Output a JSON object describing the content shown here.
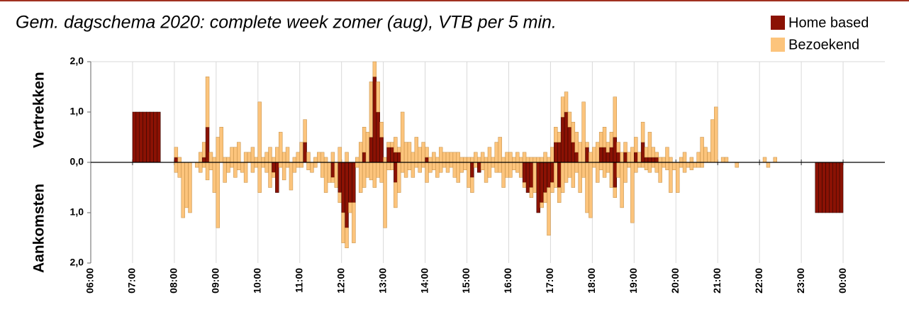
{
  "chart_data": {
    "type": "diverging-stacked-bar",
    "title": "Gem. dagschema 2020: complete week zomer (aug), VTB per 5 min.",
    "y_labels": [
      "Vertrekken",
      "Aankomsten"
    ],
    "xlim": [
      360,
      1500
    ],
    "xticks": [
      {
        "value": 360,
        "label": "06:00"
      },
      {
        "value": 420,
        "label": "07:00"
      },
      {
        "value": 480,
        "label": "08:00"
      },
      {
        "value": 540,
        "label": "09:00"
      },
      {
        "value": 600,
        "label": "10:00"
      },
      {
        "value": 660,
        "label": "11:00"
      },
      {
        "value": 720,
        "label": "12:00"
      },
      {
        "value": 780,
        "label": "13:00"
      },
      {
        "value": 840,
        "label": "14:00"
      },
      {
        "value": 900,
        "label": "15:00"
      },
      {
        "value": 960,
        "label": "16:00"
      },
      {
        "value": 1020,
        "label": "17:00"
      },
      {
        "value": 1080,
        "label": "18:00"
      },
      {
        "value": 1140,
        "label": "19:00"
      },
      {
        "value": 1200,
        "label": "20:00"
      },
      {
        "value": 1260,
        "label": "21:00"
      },
      {
        "value": 1320,
        "label": "22:00"
      },
      {
        "value": 1380,
        "label": "23:00"
      },
      {
        "value": 1440,
        "label": "00:00"
      }
    ],
    "ylim": [
      -2,
      2
    ],
    "yticks": [
      {
        "value": 2,
        "label": "2,0"
      },
      {
        "value": 1,
        "label": "1,0"
      },
      {
        "value": 0,
        "label": "0,0"
      },
      {
        "value": -1,
        "label": "1,0"
      },
      {
        "value": -2,
        "label": "2,0"
      }
    ],
    "grid": true,
    "bin_width": 5,
    "legend": "top-right",
    "x": [
      420,
      425,
      430,
      435,
      440,
      445,
      450,
      455,
      460,
      465,
      470,
      475,
      480,
      485,
      490,
      495,
      500,
      505,
      510,
      515,
      520,
      525,
      530,
      535,
      540,
      545,
      550,
      555,
      560,
      565,
      570,
      575,
      580,
      585,
      590,
      595,
      600,
      605,
      610,
      615,
      620,
      625,
      630,
      635,
      640,
      645,
      650,
      655,
      660,
      665,
      670,
      675,
      680,
      685,
      690,
      695,
      700,
      705,
      710,
      715,
      720,
      725,
      730,
      735,
      740,
      745,
      750,
      755,
      760,
      765,
      770,
      775,
      780,
      785,
      790,
      795,
      800,
      805,
      810,
      815,
      820,
      825,
      830,
      835,
      840,
      845,
      850,
      855,
      860,
      865,
      870,
      875,
      880,
      885,
      890,
      895,
      900,
      905,
      910,
      915,
      920,
      925,
      930,
      935,
      940,
      945,
      950,
      955,
      960,
      965,
      970,
      975,
      980,
      985,
      990,
      995,
      1000,
      1005,
      1010,
      1015,
      1020,
      1025,
      1030,
      1035,
      1040,
      1045,
      1050,
      1055,
      1060,
      1065,
      1070,
      1075,
      1080,
      1085,
      1090,
      1095,
      1100,
      1105,
      1110,
      1115,
      1120,
      1125,
      1130,
      1135,
      1140,
      1145,
      1150,
      1155,
      1160,
      1165,
      1170,
      1175,
      1180,
      1185,
      1190,
      1195,
      1200,
      1205,
      1210,
      1215,
      1220,
      1225,
      1230,
      1235,
      1240,
      1245,
      1250,
      1255,
      1260,
      1265,
      1270,
      1275,
      1280,
      1285,
      1290,
      1295,
      1300,
      1305,
      1310,
      1315,
      1320,
      1325,
      1330,
      1335,
      1340,
      1345,
      1350,
      1355,
      1360,
      1365,
      1370,
      1375,
      1380,
      1385,
      1390,
      1395,
      1400,
      1405,
      1410,
      1415,
      1420,
      1425,
      1430,
      1435
    ],
    "series": [
      {
        "name": "Home based",
        "color": "#8b1204",
        "values": [
          1,
          1,
          1,
          1,
          1,
          1,
          1,
          1,
          0,
          0,
          0,
          0,
          0.1,
          0,
          0,
          0,
          0,
          0,
          0,
          0,
          0.1,
          0.7,
          0,
          0,
          0,
          0,
          0,
          0,
          0,
          0,
          0,
          0,
          0,
          0,
          0,
          0,
          0,
          0,
          0,
          0,
          0,
          0,
          0,
          0,
          0,
          0,
          0,
          0,
          0,
          0.4,
          0,
          0,
          0,
          0,
          0,
          0,
          0,
          0,
          0,
          0,
          0,
          0,
          0,
          0,
          0,
          0,
          0.2,
          0,
          0.5,
          1.7,
          1.0,
          0.5,
          0,
          0.3,
          0.3,
          0.2,
          0.2,
          0,
          0,
          0,
          0,
          0,
          0,
          0,
          0.1,
          0,
          0,
          0,
          0,
          0,
          0,
          0,
          0,
          0,
          0,
          0,
          0,
          0,
          0,
          0,
          0,
          0,
          0,
          0,
          0,
          0,
          0,
          0,
          0,
          0,
          0,
          0,
          0,
          0,
          0,
          0,
          0,
          0,
          0,
          0,
          0,
          0.4,
          0.4,
          0.9,
          1.0,
          0.7,
          0.4,
          0.2,
          0,
          0,
          0.3,
          0,
          0,
          0,
          0.3,
          0.3,
          0.2,
          0.3,
          0.5,
          0.2,
          0,
          0.2,
          0,
          0,
          0.2,
          0,
          0.4,
          0.1,
          0.1,
          0.1,
          0.1,
          0,
          0,
          0,
          0,
          0,
          0,
          0,
          0,
          0,
          0,
          0,
          0,
          0,
          0,
          0,
          0,
          0,
          0,
          0,
          0,
          0,
          0,
          0,
          0,
          0,
          0,
          0,
          0,
          0,
          0,
          0,
          0,
          0,
          0,
          0,
          0,
          0,
          0,
          0,
          0,
          0,
          0,
          0,
          0,
          0,
          0,
          0,
          0,
          0,
          0,
          0,
          0,
          0
        ],
        "arrivals": [
          0,
          0,
          0,
          0,
          0,
          0,
          0,
          0,
          0,
          0,
          0,
          0,
          0,
          0,
          0,
          0,
          0,
          0,
          0,
          0,
          0,
          0,
          0,
          0,
          0,
          0,
          0,
          0,
          0,
          0,
          0,
          0,
          0,
          0,
          0,
          0,
          0,
          0,
          0,
          0,
          -0.2,
          -0.6,
          0,
          0,
          0,
          0,
          0,
          0,
          0,
          0,
          0,
          0,
          0,
          0,
          0,
          0,
          0,
          -0.3,
          0,
          -0.6,
          -1.0,
          -1.3,
          -0.8,
          -0.8,
          0,
          0,
          0,
          0,
          0,
          0,
          0,
          0,
          0,
          0,
          0,
          -0.4,
          0,
          0,
          0,
          0,
          0,
          0,
          0,
          0,
          0,
          0,
          0,
          0,
          0,
          0,
          0,
          0,
          0,
          0,
          0,
          0,
          0,
          -0.3,
          0,
          -0.2,
          0,
          0,
          0,
          0,
          0,
          0,
          0,
          0,
          0,
          0,
          0,
          0,
          -0.4,
          -0.6,
          -0.5,
          0,
          -1.0,
          -0.8,
          -0.6,
          -0.5,
          -0.4,
          0,
          -0.5,
          0,
          0,
          0,
          0,
          0,
          0,
          0,
          0,
          0,
          0,
          0,
          0,
          0,
          0,
          0,
          -0.5,
          0,
          0,
          0,
          0,
          0,
          0,
          0,
          0,
          0,
          0,
          0,
          0,
          0,
          0,
          0,
          0,
          0,
          0,
          0,
          0,
          0,
          0,
          0,
          0,
          0,
          0,
          0,
          0,
          0,
          0,
          0,
          0,
          0,
          0,
          0,
          0,
          0,
          0,
          0,
          0,
          0,
          0,
          0,
          0,
          0,
          0,
          0,
          0,
          0,
          0,
          0,
          0,
          0,
          0,
          0,
          0,
          0,
          -1,
          -1,
          -1,
          -1,
          -1,
          -1,
          -1,
          -1
        ]
      },
      {
        "name": "Bezoekend",
        "color": "#fcc47c",
        "values": [
          0,
          0,
          0,
          0,
          0,
          0,
          0,
          0,
          0,
          0,
          0,
          0,
          0.2,
          0.1,
          0,
          0,
          0,
          0,
          0,
          0.2,
          0.3,
          1.0,
          0.2,
          0.1,
          0.5,
          0.7,
          0.1,
          0.1,
          0.3,
          0.3,
          0.4,
          0,
          0.2,
          0.2,
          0.3,
          0.1,
          1.2,
          0.1,
          0.2,
          0.3,
          0.1,
          0.3,
          0.6,
          0.2,
          0.3,
          0,
          0.1,
          0.2,
          0.4,
          0.45,
          0.2,
          0,
          0.1,
          0.2,
          0.2,
          0.1,
          0,
          0.2,
          0,
          0.3,
          0,
          0.2,
          0,
          0,
          0.1,
          0.4,
          0.5,
          0.6,
          1.1,
          0.3,
          0.6,
          0.3,
          0.1,
          0.1,
          0.1,
          0.3,
          0.1,
          1.0,
          0.4,
          0.4,
          0.2,
          0.5,
          0.3,
          0.4,
          0.2,
          0.1,
          0.2,
          0.1,
          0.3,
          0.2,
          0.2,
          0.2,
          0.2,
          0.2,
          0.1,
          0.1,
          0.1,
          0.1,
          0.2,
          0.1,
          0.2,
          0.1,
          0.3,
          0.1,
          0.4,
          0.5,
          0.1,
          0.2,
          0.2,
          0.1,
          0.2,
          0.1,
          0.2,
          0.1,
          0.1,
          0.1,
          0.1,
          0.1,
          0.2,
          0.1,
          0.3,
          0.3,
          0.2,
          0.4,
          0.4,
          0.3,
          0.4,
          0.4,
          0.4,
          1.2,
          0.1,
          0.2,
          0.3,
          0.4,
          0.3,
          0.4,
          0.2,
          0.3,
          0.8,
          0.2,
          0.2,
          0.2,
          0.2,
          0.3,
          0.3,
          0.2,
          0.4,
          0.2,
          0.5,
          0.2,
          0.1,
          0.1,
          0.1,
          0.3,
          0.1,
          0,
          0,
          0.1,
          0.2,
          0,
          0.1,
          0,
          0.2,
          0.5,
          0.3,
          0.2,
          0.85,
          1.1,
          0,
          0.1,
          0.1,
          0,
          0,
          0,
          0,
          0,
          0,
          0,
          0,
          0,
          0,
          0.1,
          0,
          0,
          0.1,
          0,
          0,
          0,
          0,
          0,
          0,
          0,
          0,
          0,
          0,
          0,
          0,
          0,
          0,
          0,
          0,
          0,
          0,
          0
        ],
        "arrivals": [
          0,
          0,
          0,
          0,
          0,
          0,
          0,
          0,
          0,
          0,
          0,
          0,
          -0.2,
          -0.3,
          -1.1,
          -0.9,
          -1.0,
          0,
          -0.1,
          -0.2,
          -0.1,
          -0.35,
          -0.15,
          -0.6,
          -1.3,
          0,
          -0.4,
          -0.2,
          -0.1,
          -0.3,
          -0.15,
          -0.2,
          -0.4,
          0,
          -0.2,
          -0.1,
          -0.6,
          -0.1,
          -0.2,
          -0.5,
          -0.1,
          0,
          -0.1,
          -0.35,
          -0.1,
          -0.55,
          -0.2,
          -0.1,
          -0.1,
          0,
          -0.15,
          -0.2,
          -0.1,
          0,
          -0.3,
          -0.6,
          -0.4,
          -0.1,
          -0.5,
          -0.2,
          -0.6,
          -0.4,
          -0.2,
          -0.8,
          -0.1,
          -0.6,
          -0.5,
          -0.3,
          -0.35,
          -0.5,
          -0.3,
          -0.4,
          -1.3,
          -0.15,
          -0.15,
          -0.5,
          -0.6,
          -0.2,
          -0.3,
          -0.15,
          -0.3,
          -0.1,
          -0.2,
          -0.1,
          -0.4,
          -0.2,
          -0.15,
          -0.3,
          -0.2,
          -0.1,
          -0.2,
          -0.1,
          -0.3,
          -0.4,
          -0.2,
          -0.15,
          -0.5,
          -0.3,
          -0.1,
          0,
          -0.15,
          -0.4,
          -0.3,
          -0.1,
          -0.2,
          -0.2,
          -0.5,
          -0.3,
          -0.3,
          -0.15,
          -0.2,
          -0.3,
          -0.1,
          0,
          -0.2,
          -0.6,
          0,
          -0.1,
          -0.2,
          -0.95,
          -0.2,
          -0.5,
          -0.3,
          -0.6,
          -0.4,
          -0.3,
          -0.5,
          -0.2,
          -0.6,
          -0.3,
          -1.0,
          -1.1,
          -0.1,
          -0.4,
          -0.15,
          -0.3,
          -0.2,
          -0.5,
          -0.2,
          -0.3,
          -0.9,
          -0.4,
          -0.1,
          -1.2,
          -0.2,
          -0.1,
          -0.1,
          -0.15,
          -0.2,
          -0.1,
          -0.2,
          -0.4,
          -0.1,
          -0.15,
          -0.6,
          -0.15,
          -0.6,
          -0.1,
          -0.2,
          -0.1,
          -0.15,
          -0.1,
          -0.1,
          -0.1,
          0,
          0,
          0,
          0,
          0,
          0,
          0,
          0,
          0,
          -0.1,
          0,
          0,
          0,
          0,
          0,
          0,
          0,
          0,
          -0.1,
          0,
          0,
          0,
          0,
          0,
          0,
          0,
          0,
          0,
          0,
          0,
          0,
          0,
          0,
          0,
          0,
          0,
          0,
          0,
          0,
          0
        ]
      }
    ]
  }
}
